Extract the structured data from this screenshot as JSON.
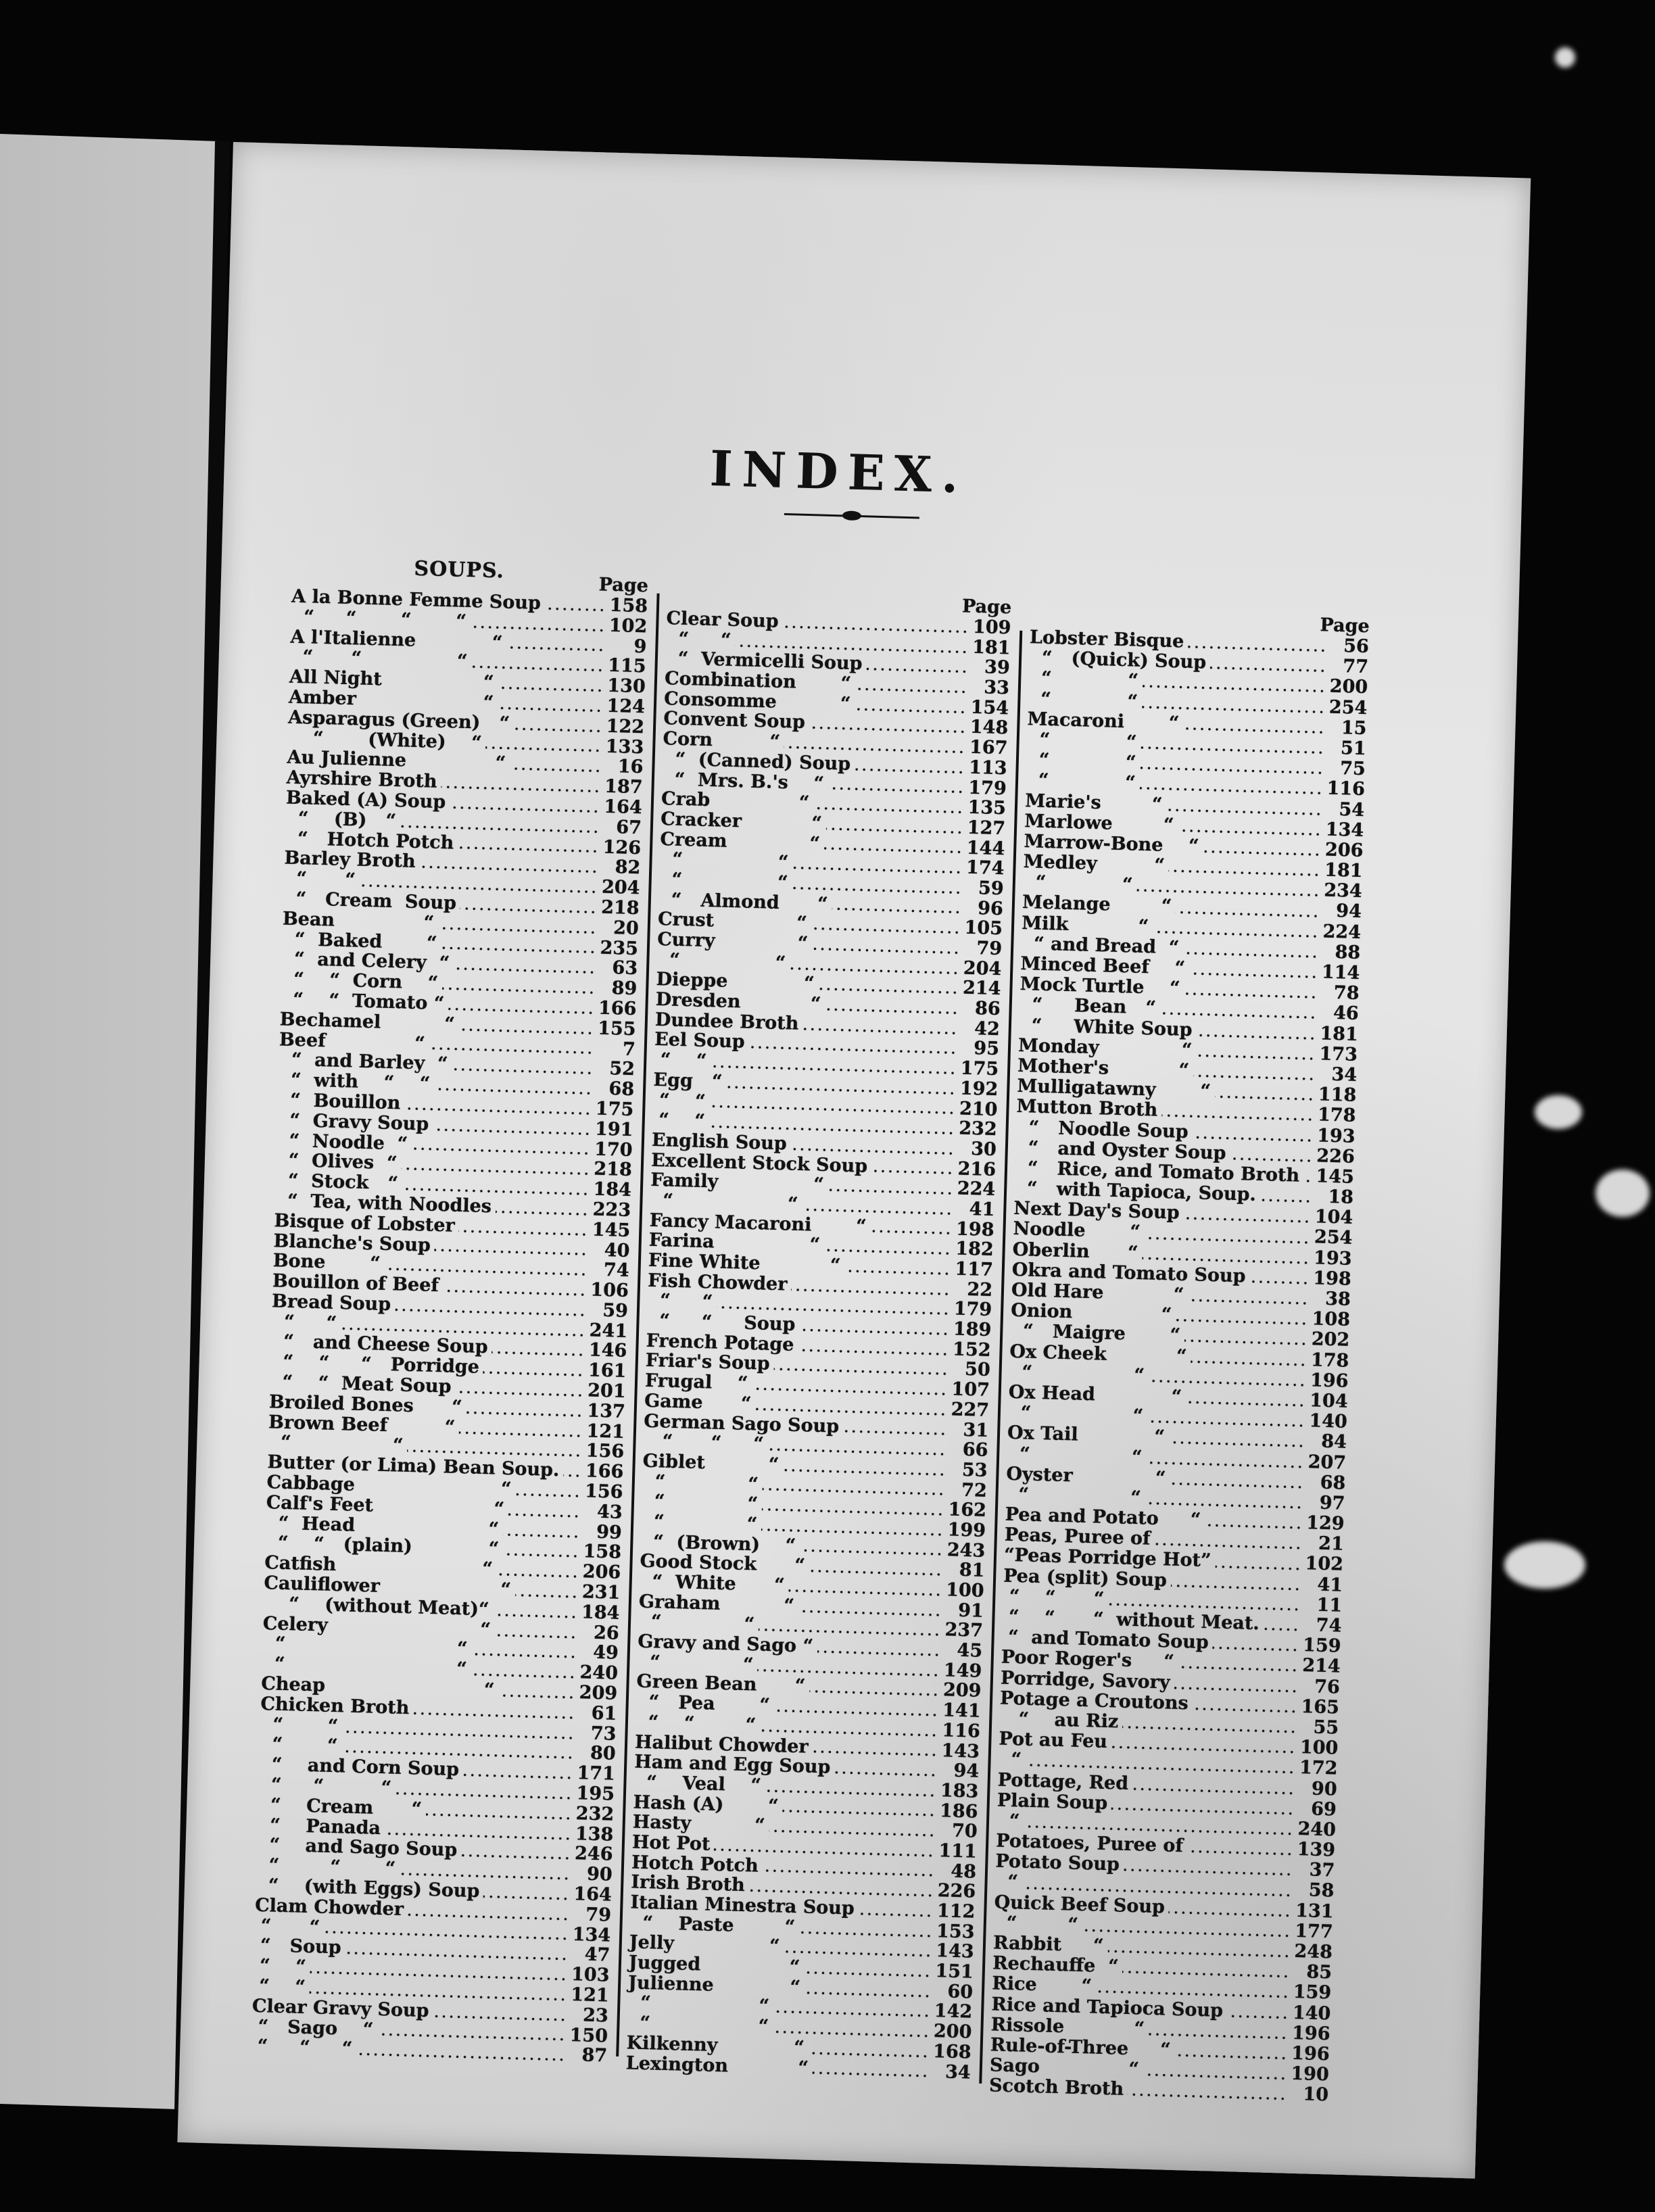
{
  "title": "INDEX.",
  "columns": [
    {
      "section": "SOUPS.",
      "page_label": "Page",
      "entries": [
        {
          "text": "A la Bonne Femme Soup",
          "page": "158"
        },
        {
          "text": "  “     “       “       “",
          "page": "102"
        },
        {
          "text": "A l'Italienne            “",
          "page": "9"
        },
        {
          "text": "  “      “               “",
          "page": "115"
        },
        {
          "text": "All Night                “",
          "page": "130"
        },
        {
          "text": "Amber                    “",
          "page": "124"
        },
        {
          "text": "Asparagus (Green)   “",
          "page": "122"
        },
        {
          "text": "    “       (White)    “",
          "page": "133"
        },
        {
          "text": "Au Julienne              “",
          "page": "16"
        },
        {
          "text": "Ayrshire Broth",
          "page": "187"
        },
        {
          "text": "Baked (A) Soup",
          "page": "164"
        },
        {
          "text": "  “    (B)   “",
          "page": "67"
        },
        {
          "text": "  “   Hotch Potch",
          "page": "126"
        },
        {
          "text": "Barley Broth",
          "page": "82"
        },
        {
          "text": "  “      “",
          "page": "204"
        },
        {
          "text": "  “   Cream  Soup",
          "page": "218"
        },
        {
          "text": "Bean              “",
          "page": "20"
        },
        {
          "text": "  “  Baked       “",
          "page": "235"
        },
        {
          "text": "  “  and Celery  “",
          "page": "63"
        },
        {
          "text": "  “    “  Corn    “",
          "page": "89"
        },
        {
          "text": "  “    “  Tomato “",
          "page": "166"
        },
        {
          "text": "Bechamel          “",
          "page": "155"
        },
        {
          "text": "Beef              “",
          "page": "7"
        },
        {
          "text": "  “  and Barley  “",
          "page": "52"
        },
        {
          "text": "  “  with    “    “",
          "page": "68"
        },
        {
          "text": "  “  Bouillon",
          "page": "175"
        },
        {
          "text": "  “  Gravy Soup",
          "page": "191"
        },
        {
          "text": "  “  Noodle  “",
          "page": "170"
        },
        {
          "text": "  “  Olives  “",
          "page": "218"
        },
        {
          "text": "  “  Stock   “",
          "page": "184"
        },
        {
          "text": "  “  Tea, with Noodles",
          "page": "223"
        },
        {
          "text": "Bisque of Lobster",
          "page": "145"
        },
        {
          "text": "Blanche's Soup",
          "page": "40"
        },
        {
          "text": "Bone       “",
          "page": "74"
        },
        {
          "text": "Bouillon of Beef",
          "page": "106"
        },
        {
          "text": "Bread Soup",
          "page": "59"
        },
        {
          "text": "  “     “",
          "page": "241"
        },
        {
          "text": "  “   and Cheese Soup",
          "page": "146"
        },
        {
          "text": "  “    “     “   Porridge",
          "page": "161"
        },
        {
          "text": "  “    “  Meat Soup",
          "page": "201"
        },
        {
          "text": "Broiled Bones      “",
          "page": "137"
        },
        {
          "text": "Brown Beef         “",
          "page": "121"
        },
        {
          "text": "  “                “",
          "page": "156"
        },
        {
          "text": "Butter (or Lima) Bean Soup.",
          "page": "166"
        },
        {
          "text": "Cabbage                       “",
          "page": "156"
        },
        {
          "text": "Calf's Feet                   “",
          "page": "43"
        },
        {
          "text": "  “  Head                     “",
          "page": "99"
        },
        {
          "text": "  “    “   (plain)            “",
          "page": "158"
        },
        {
          "text": "Catfish                       “",
          "page": "206"
        },
        {
          "text": "Cauliflower                   “",
          "page": "231"
        },
        {
          "text": "    “    (without Meat)“",
          "page": "184"
        },
        {
          "text": "Celery                        “",
          "page": "26"
        },
        {
          "text": "  “                           “",
          "page": "49"
        },
        {
          "text": "  “                           “",
          "page": "240"
        },
        {
          "text": "Cheap                         “",
          "page": "209"
        },
        {
          "text": "Chicken Broth",
          "page": "61"
        },
        {
          "text": "  “       “",
          "page": "73"
        },
        {
          "text": "  “       “",
          "page": "80"
        },
        {
          "text": "  “    and Corn Soup",
          "page": "171"
        },
        {
          "text": "  “     “         “",
          "page": "195"
        },
        {
          "text": "  “    Cream      “",
          "page": "232"
        },
        {
          "text": "  “    Panada",
          "page": "138"
        },
        {
          "text": "  “    and Sago Soup",
          "page": "246"
        },
        {
          "text": "  “        “       “",
          "page": "90"
        },
        {
          "text": "  “    (with Eggs) Soup",
          "page": "164"
        },
        {
          "text": "Clam Chowder",
          "page": "79"
        },
        {
          "text": " “      “",
          "page": "134"
        },
        {
          "text": " “   Soup",
          "page": "47"
        },
        {
          "text": " “    “",
          "page": "103"
        },
        {
          "text": " “    “",
          "page": "121"
        },
        {
          "text": "Clear Gravy Soup",
          "page": "23"
        },
        {
          "text": " “   Sago    “",
          "page": "150"
        },
        {
          "text": " “     “     “",
          "page": "87"
        }
      ]
    },
    {
      "section": "",
      "page_label": "Page",
      "entries": [
        {
          "text": "Clear Soup",
          "page": "109"
        },
        {
          "text": "  “     “",
          "page": "181"
        },
        {
          "text": "  “  Vermicelli Soup",
          "page": "39"
        },
        {
          "text": "Combination       “",
          "page": "33"
        },
        {
          "text": "Consomme          “",
          "page": "154"
        },
        {
          "text": "Convent Soup",
          "page": "148"
        },
        {
          "text": "Corn         “",
          "page": "167"
        },
        {
          "text": "  “  (Canned) Soup",
          "page": "113"
        },
        {
          "text": "  “  Mrs. B.'s    “",
          "page": "179"
        },
        {
          "text": "Crab              “",
          "page": "135"
        },
        {
          "text": "Cracker           “",
          "page": "127"
        },
        {
          "text": "Cream             “",
          "page": "144"
        },
        {
          "text": "  “               “",
          "page": "174"
        },
        {
          "text": "  “               “",
          "page": "59"
        },
        {
          "text": "  “   Almond      “",
          "page": "96"
        },
        {
          "text": "Crust             “",
          "page": "105"
        },
        {
          "text": "Curry             “",
          "page": "79"
        },
        {
          "text": "  “               “",
          "page": "204"
        },
        {
          "text": "Dieppe            “",
          "page": "214"
        },
        {
          "text": "Dresden           “",
          "page": "86"
        },
        {
          "text": "Dundee Broth",
          "page": "42"
        },
        {
          "text": "Eel Soup",
          "page": "95"
        },
        {
          "text": " “    “",
          "page": "175"
        },
        {
          "text": "Egg   “",
          "page": "192"
        },
        {
          "text": " “    “",
          "page": "210"
        },
        {
          "text": " “    “",
          "page": "232"
        },
        {
          "text": "English Soup",
          "page": "30"
        },
        {
          "text": "Excellent Stock Soup",
          "page": "216"
        },
        {
          "text": "Family               “",
          "page": "224"
        },
        {
          "text": "  “                  “",
          "page": "41"
        },
        {
          "text": "Fancy Macaroni       “",
          "page": "198"
        },
        {
          "text": "Farina               “",
          "page": "182"
        },
        {
          "text": "Fine White           “",
          "page": "117"
        },
        {
          "text": "Fish Chowder",
          "page": "22"
        },
        {
          "text": "  “     “",
          "page": "179"
        },
        {
          "text": "  “     “     Soup",
          "page": "189"
        },
        {
          "text": "French Potage",
          "page": "152"
        },
        {
          "text": "Friar's Soup",
          "page": "50"
        },
        {
          "text": "Frugal    “",
          "page": "107"
        },
        {
          "text": "Game      “",
          "page": "227"
        },
        {
          "text": "German Sago Soup",
          "page": "31"
        },
        {
          "text": "   “      “     “",
          "page": "66"
        },
        {
          "text": "Giblet          “",
          "page": "53"
        },
        {
          "text": "  “             “",
          "page": "72"
        },
        {
          "text": "  “             “",
          "page": "162"
        },
        {
          "text": "  “             “",
          "page": "199"
        },
        {
          "text": "  “  (Brown)    “",
          "page": "243"
        },
        {
          "text": "Good Stock      “",
          "page": "81"
        },
        {
          "text": "  “  White      “",
          "page": "100"
        },
        {
          "text": "Graham          “",
          "page": "91"
        },
        {
          "text": "  “             “",
          "page": "237"
        },
        {
          "text": "Gravy and Sago “",
          "page": "45"
        },
        {
          "text": "  “             “",
          "page": "149"
        },
        {
          "text": "Green Bean      “",
          "page": "209"
        },
        {
          "text": "  “   Pea       “",
          "page": "141"
        },
        {
          "text": "  “    “        “",
          "page": "116"
        },
        {
          "text": "Halibut Chowder",
          "page": "143"
        },
        {
          "text": "Ham and Egg Soup",
          "page": "94"
        },
        {
          "text": "  “    Veal    “",
          "page": "183"
        },
        {
          "text": "Hash (A)       “",
          "page": "186"
        },
        {
          "text": "Hasty          “",
          "page": "70"
        },
        {
          "text": "Hot Pot",
          "page": "111"
        },
        {
          "text": "Hotch Potch",
          "page": "48"
        },
        {
          "text": "Irish Broth",
          "page": "226"
        },
        {
          "text": "Italian Minestra Soup",
          "page": "112"
        },
        {
          "text": "  “    Paste        “",
          "page": "153"
        },
        {
          "text": "Jelly               “",
          "page": "143"
        },
        {
          "text": "Jugged              “",
          "page": "151"
        },
        {
          "text": "Julienne            “",
          "page": "60"
        },
        {
          "text": "  “                 “",
          "page": "142"
        },
        {
          "text": "  “                 “",
          "page": "200"
        },
        {
          "text": "Kilkenny            “",
          "page": "168"
        },
        {
          "text": "Lexington           “",
          "page": "34"
        }
      ]
    },
    {
      "section": "",
      "page_label": "Page",
      "entries": [
        {
          "text": "Lobster Bisque",
          "page": "56"
        },
        {
          "text": "  “   (Quick) Soup",
          "page": "77"
        },
        {
          "text": "  “            “",
          "page": "200"
        },
        {
          "text": "  “            “",
          "page": "254"
        },
        {
          "text": "Macaroni       “",
          "page": "15"
        },
        {
          "text": "  “            “",
          "page": "51"
        },
        {
          "text": "  “            “",
          "page": "75"
        },
        {
          "text": "  “            “",
          "page": "116"
        },
        {
          "text": "Marie's        “",
          "page": "54"
        },
        {
          "text": "Marlowe        “",
          "page": "134"
        },
        {
          "text": "Marrow-Bone    “",
          "page": "206"
        },
        {
          "text": "Medley         “",
          "page": "181"
        },
        {
          "text": "  “            “",
          "page": "234"
        },
        {
          "text": "Melange        “",
          "page": "94"
        },
        {
          "text": "Milk           “",
          "page": "224"
        },
        {
          "text": "  “ and Bread  “",
          "page": "88"
        },
        {
          "text": "Minced Beef    “",
          "page": "114"
        },
        {
          "text": "Mock Turtle    “",
          "page": "78"
        },
        {
          "text": "  “     Bean   “",
          "page": "46"
        },
        {
          "text": "  “     White Soup",
          "page": "181"
        },
        {
          "text": "Monday             “",
          "page": "173"
        },
        {
          "text": "Mother's           “",
          "page": "34"
        },
        {
          "text": "Mulligatawny       “",
          "page": "118"
        },
        {
          "text": "Mutton Broth",
          "page": "178"
        },
        {
          "text": "  “   Noodle Soup",
          "page": "193"
        },
        {
          "text": "  “   and Oyster Soup",
          "page": "226"
        },
        {
          "text": "  “   Rice, and Tomato Broth",
          "page": "145"
        },
        {
          "text": "  “   with Tapioca, Soup.",
          "page": "18"
        },
        {
          "text": "Next Day's Soup",
          "page": "104"
        },
        {
          "text": "Noodle       “",
          "page": "254"
        },
        {
          "text": "Oberlin      “",
          "page": "193"
        },
        {
          "text": "Okra and Tomato Soup",
          "page": "198"
        },
        {
          "text": "Old Hare           “",
          "page": "38"
        },
        {
          "text": "Onion              “",
          "page": "108"
        },
        {
          "text": "  “   Maigre       “",
          "page": "202"
        },
        {
          "text": "Ox Cheek           “",
          "page": "178"
        },
        {
          "text": "  “                “",
          "page": "196"
        },
        {
          "text": "Ox Head            “",
          "page": "104"
        },
        {
          "text": "  “                “",
          "page": "140"
        },
        {
          "text": "Ox Tail            “",
          "page": "84"
        },
        {
          "text": "  “                “",
          "page": "207"
        },
        {
          "text": "Oyster             “",
          "page": "68"
        },
        {
          "text": "  “                “",
          "page": "97"
        },
        {
          "text": "Pea and Potato     “",
          "page": "129"
        },
        {
          "text": "Peas, Puree of",
          "page": "21"
        },
        {
          "text": "“Peas Porridge Hot”",
          "page": "102"
        },
        {
          "text": "Pea (split) Soup",
          "page": "41"
        },
        {
          "text": " “    “      “",
          "page": "11"
        },
        {
          "text": " “    “      “  without Meat.",
          "page": "74"
        },
        {
          "text": " “  and Tomato Soup",
          "page": "159"
        },
        {
          "text": "Poor Roger's     “",
          "page": "214"
        },
        {
          "text": "Porridge, Savory",
          "page": "76"
        },
        {
          "text": "Potage a Croutons",
          "page": "165"
        },
        {
          "text": "   “    au Riz",
          "page": "55"
        },
        {
          "text": "Pot au Feu",
          "page": "100"
        },
        {
          "text": "  “",
          "page": "172"
        },
        {
          "text": "Pottage, Red",
          "page": "90"
        },
        {
          "text": "Plain Soup",
          "page": "69"
        },
        {
          "text": "  “",
          "page": "240"
        },
        {
          "text": "Potatoes, Puree of",
          "page": "139"
        },
        {
          "text": "Potato Soup",
          "page": "37"
        },
        {
          "text": "  “",
          "page": "58"
        },
        {
          "text": "Quick Beef Soup",
          "page": "131"
        },
        {
          "text": "  “        “",
          "page": "177"
        },
        {
          "text": "Rabbit     “",
          "page": "248"
        },
        {
          "text": "Rechauffe  “",
          "page": "85"
        },
        {
          "text": "Rice       “",
          "page": "159"
        },
        {
          "text": "Rice and Tapioca Soup",
          "page": "140"
        },
        {
          "text": "Rissole           “",
          "page": "196"
        },
        {
          "text": "Rule-of-Three     “",
          "page": "196"
        },
        {
          "text": "Sago              “",
          "page": "190"
        },
        {
          "text": "Scotch Broth",
          "page": "10"
        }
      ]
    }
  ]
}
